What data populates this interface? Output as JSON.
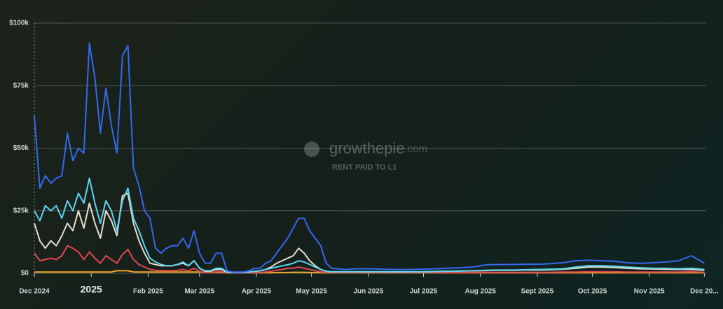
{
  "chart_data": {
    "type": "line",
    "title": "RENT PAID TO L1",
    "brand": "growthepie",
    "brand_suffix": ".com",
    "x": [
      0,
      3,
      6,
      9,
      12,
      15,
      18,
      21,
      24,
      27,
      30,
      33,
      36,
      39,
      42,
      45,
      48,
      51,
      54,
      57,
      60,
      63,
      66,
      69,
      72,
      75,
      78,
      81,
      84,
      87,
      90,
      93,
      96,
      99,
      102,
      105,
      108,
      111,
      114,
      117,
      120,
      123,
      126,
      129,
      132,
      135,
      138,
      141,
      144,
      147,
      150,
      153,
      156,
      159,
      162,
      169,
      176,
      183,
      190,
      197,
      204,
      211,
      218,
      225,
      232,
      239,
      246,
      253,
      260,
      267,
      274,
      281,
      288,
      295,
      302,
      309,
      316,
      323,
      330,
      337,
      344,
      351,
      358,
      365
    ],
    "xlim": [
      0,
      366
    ],
    "xticks": [
      {
        "value": 0,
        "label": "Dec 2024"
      },
      {
        "value": 31,
        "label": "2025"
      },
      {
        "value": 62,
        "label": "Feb 2025"
      },
      {
        "value": 90,
        "label": "Mar 2025"
      },
      {
        "value": 121,
        "label": "Apr 2025"
      },
      {
        "value": 151,
        "label": "May 2025"
      },
      {
        "value": 182,
        "label": "Jun 2025"
      },
      {
        "value": 212,
        "label": "Jul 2025"
      },
      {
        "value": 243,
        "label": "Aug 2025"
      },
      {
        "value": 274,
        "label": "Sept 2025"
      },
      {
        "value": 304,
        "label": "Oct 2025"
      },
      {
        "value": 335,
        "label": "Nov 2025"
      },
      {
        "value": 365,
        "label": "Dec 20..."
      }
    ],
    "ylim": [
      0,
      100000
    ],
    "yticks": [
      {
        "value": 0,
        "label": "$0"
      },
      {
        "value": 25000,
        "label": "$25k"
      },
      {
        "value": 50000,
        "label": "$50k"
      },
      {
        "value": 75000,
        "label": "$75k"
      },
      {
        "value": 100000,
        "label": "$100k"
      }
    ],
    "grid": true,
    "series": [
      {
        "color": "#3468f0",
        "values": [
          63000,
          34000,
          39000,
          36000,
          38000,
          39000,
          56000,
          45000,
          50000,
          48000,
          92000,
          78000,
          56000,
          74000,
          59000,
          48000,
          87000,
          91000,
          42000,
          35000,
          25000,
          22000,
          10000,
          8000,
          10000,
          11000,
          11000,
          14000,
          10000,
          17000,
          8000,
          4000,
          4000,
          8000,
          8000,
          1000,
          500,
          500,
          500,
          1000,
          2000,
          2000,
          4000,
          5000,
          8000,
          11000,
          14000,
          18000,
          22000,
          22000,
          17000,
          14000,
          11000,
          4000,
          2000,
          1500,
          1800,
          1800,
          1600,
          1500,
          1500,
          1600,
          1800,
          2000,
          2200,
          2500,
          3400,
          3500,
          3500,
          3600,
          3600,
          3800,
          4200,
          5000,
          5200,
          5000,
          4800,
          4200,
          4000,
          4200,
          4500,
          5000,
          7000,
          4000
        ]
      },
      {
        "color": "#5fd4f0",
        "values": [
          25000,
          21000,
          27000,
          25000,
          27000,
          22000,
          29000,
          25000,
          32000,
          28000,
          38000,
          28000,
          20000,
          29000,
          25000,
          17000,
          29000,
          34000,
          22000,
          17000,
          11000,
          6000,
          4500,
          3500,
          3000,
          3000,
          3500,
          4500,
          3000,
          5000,
          2000,
          1000,
          1000,
          2000,
          2000,
          500,
          300,
          300,
          300,
          500,
          800,
          1000,
          1500,
          2000,
          2500,
          3000,
          3400,
          4000,
          5000,
          4500,
          3500,
          2500,
          1500,
          800,
          600,
          600,
          600,
          600,
          600,
          600,
          600,
          600,
          700,
          800,
          900,
          1000,
          1200,
          1300,
          1300,
          1400,
          1500,
          1600,
          1800,
          2500,
          3000,
          3000,
          2800,
          2500,
          2200,
          2000,
          2000,
          1800,
          2000,
          1500
        ]
      },
      {
        "color": "#e6dfcc",
        "values": [
          20000,
          13000,
          10000,
          13000,
          11000,
          15000,
          20000,
          17000,
          25000,
          18000,
          28000,
          20000,
          14000,
          25000,
          21000,
          15000,
          31000,
          32000,
          20000,
          13000,
          8000,
          4000,
          3500,
          3000,
          3000,
          3000,
          3500,
          4000,
          3000,
          5000,
          2000,
          800,
          800,
          1500,
          1500,
          400,
          300,
          300,
          300,
          500,
          800,
          1000,
          1500,
          2500,
          4000,
          5000,
          6000,
          7000,
          10000,
          8000,
          5000,
          3000,
          1500,
          800,
          600,
          600,
          600,
          600,
          600,
          600,
          600,
          600,
          700,
          800,
          900,
          1000,
          1100,
          1200,
          1200,
          1300,
          1300,
          1400,
          1600,
          2000,
          2500,
          2500,
          2300,
          2000,
          1800,
          1700,
          1600,
          1500,
          1500,
          1200
        ]
      },
      {
        "color": "#e0474f",
        "values": [
          8000,
          5000,
          5500,
          6000,
          5500,
          7000,
          11000,
          10000,
          8500,
          5500,
          8500,
          6000,
          4000,
          7000,
          5500,
          4000,
          7500,
          9500,
          5500,
          3500,
          2500,
          1500,
          1200,
          1000,
          1000,
          1000,
          1200,
          1500,
          1000,
          2000,
          800,
          300,
          300,
          600,
          600,
          200,
          150,
          150,
          150,
          200,
          300,
          400,
          500,
          800,
          1200,
          1500,
          2000,
          2000,
          2500,
          2000,
          1500,
          1000,
          600,
          400,
          300,
          300,
          300,
          300,
          300,
          300,
          300,
          300,
          300,
          300,
          300,
          400,
          400,
          400,
          400,
          400,
          400,
          400,
          500,
          500,
          600,
          600,
          600,
          500,
          500,
          500,
          500,
          500,
          600,
          400
        ]
      },
      {
        "color": "#f5a623",
        "values": [
          500,
          500,
          500,
          500,
          500,
          500,
          500,
          500,
          500,
          500,
          500,
          500,
          500,
          500,
          500,
          1000,
          1000,
          1000,
          500,
          500,
          500,
          500,
          500,
          500,
          500,
          500,
          500,
          500,
          500,
          500,
          500,
          300,
          300,
          300,
          300,
          200,
          200,
          200,
          200,
          200,
          200,
          200,
          200,
          200,
          300,
          300,
          300,
          400,
          400,
          400,
          300,
          300,
          200,
          200,
          200,
          200,
          200,
          200,
          200,
          200,
          200,
          200,
          200,
          200,
          200,
          200,
          200,
          200,
          200,
          200,
          200,
          200,
          200,
          200,
          200,
          200,
          200,
          200,
          200,
          200,
          200,
          200,
          200,
          200
        ]
      }
    ]
  }
}
